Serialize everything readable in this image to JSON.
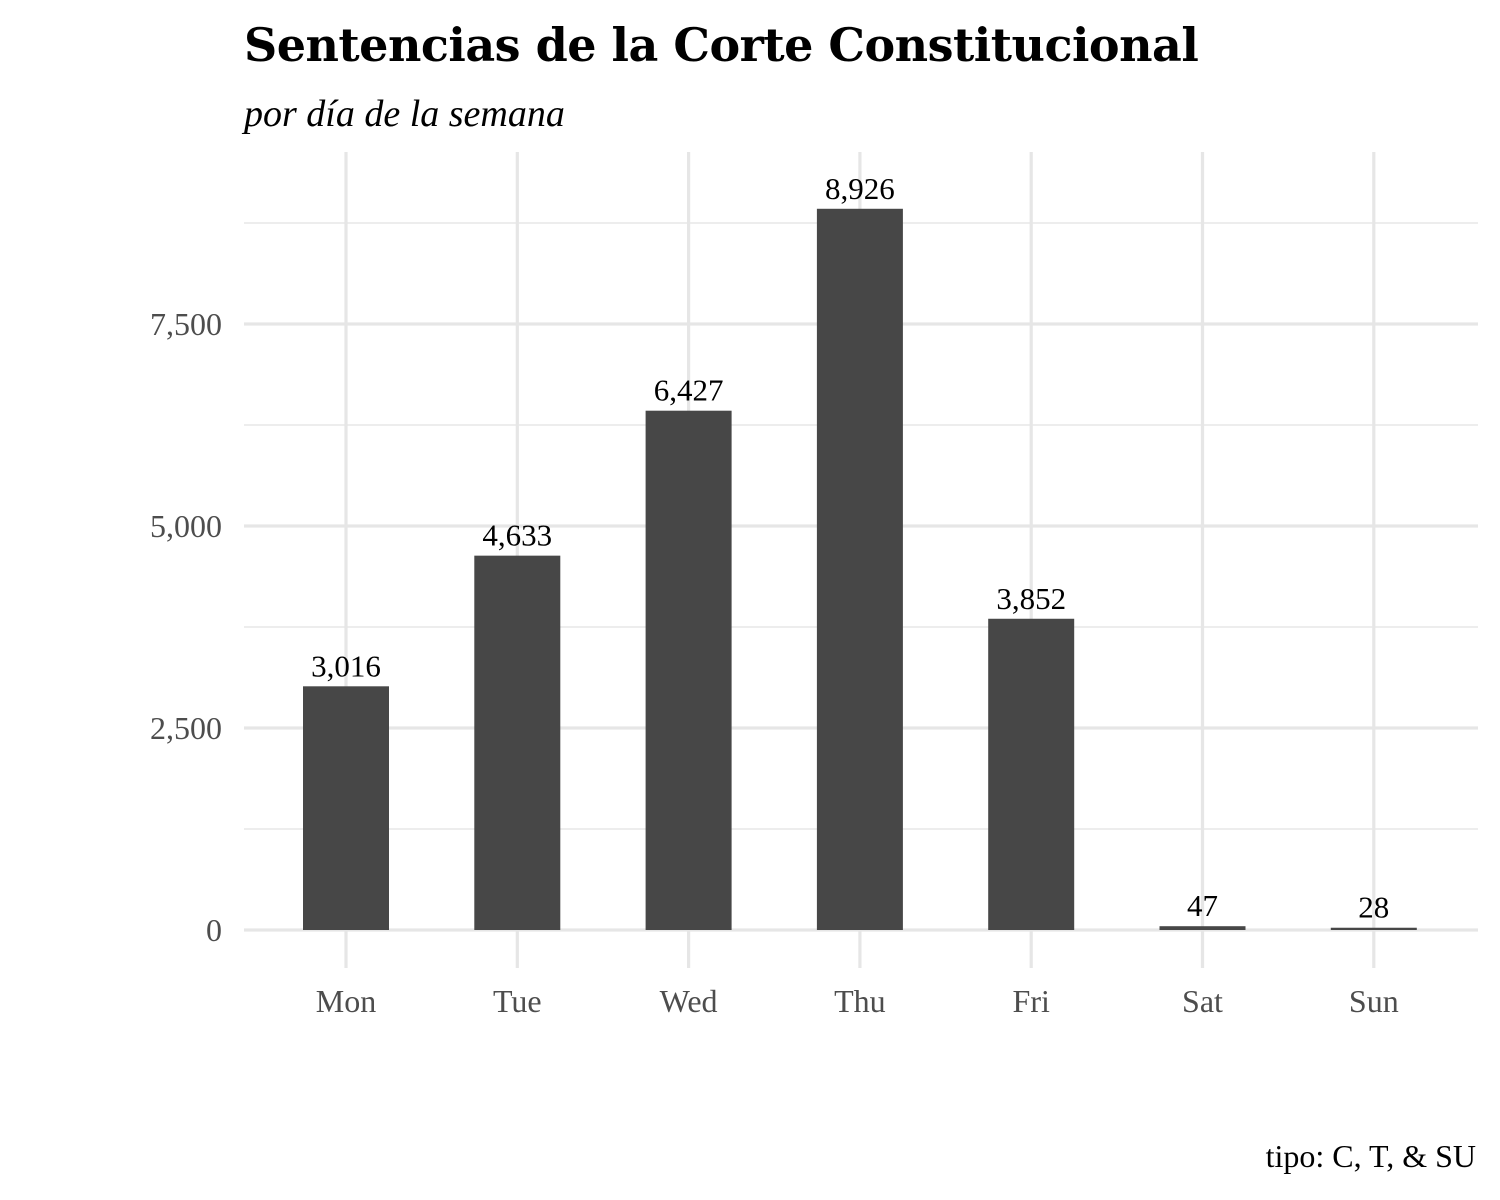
{
  "chart_data": {
    "type": "bar",
    "title": "Sentencias de la Corte Constitucional",
    "subtitle": "por día de la semana",
    "caption": "tipo: C, T, & SU",
    "categories": [
      "Mon",
      "Tue",
      "Wed",
      "Thu",
      "Fri",
      "Sat",
      "Sun"
    ],
    "values": [
      3016,
      4633,
      6427,
      8926,
      3852,
      47,
      28
    ],
    "value_labels": [
      "3,016",
      "4,633",
      "6,427",
      "8,926",
      "3,852",
      "47",
      "28"
    ],
    "y_ticks": [
      0,
      2500,
      5000,
      7500
    ],
    "y_tick_labels": [
      "0",
      "2,500",
      "5,000",
      "7,500"
    ],
    "ylim": [
      0,
      9350
    ],
    "xlabel": "",
    "ylabel": "",
    "grid": true,
    "legend": "none",
    "bar_color": "#474747"
  }
}
